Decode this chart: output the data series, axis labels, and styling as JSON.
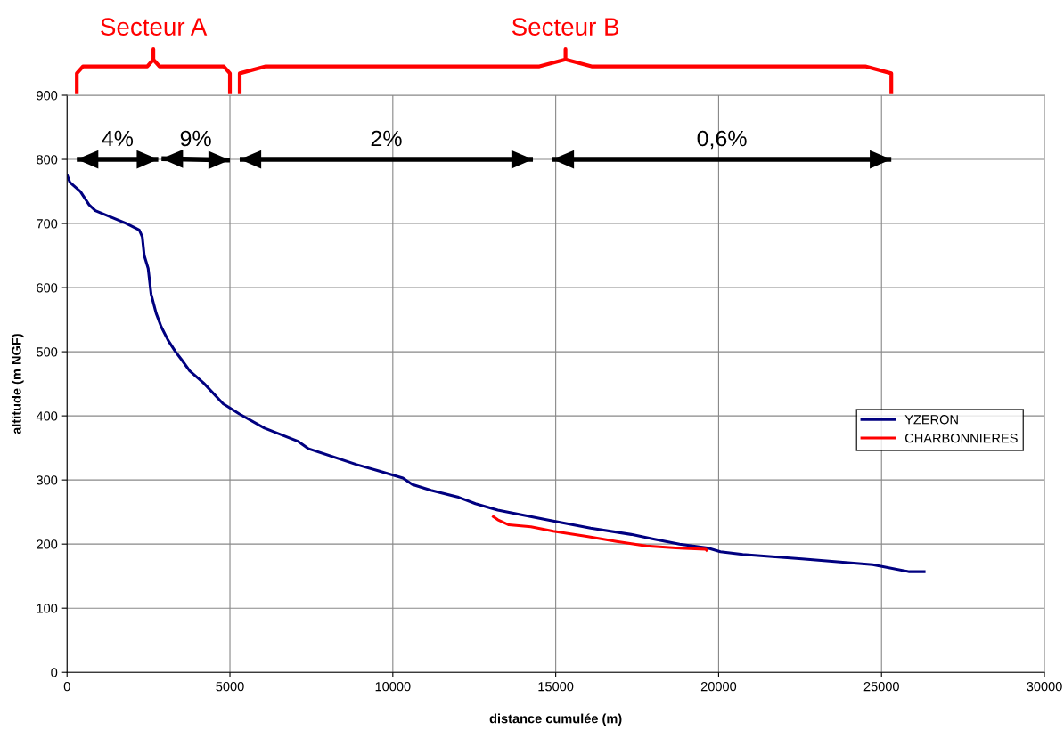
{
  "chart_data": {
    "type": "line",
    "xlabel": "distance cumulée (m)",
    "ylabel": "altitude (m NGF)",
    "xlim": [
      0,
      30000
    ],
    "ylim": [
      0,
      900
    ],
    "xticks": [
      0,
      5000,
      10000,
      15000,
      20000,
      25000,
      30000
    ],
    "yticks": [
      0,
      100,
      200,
      300,
      400,
      500,
      600,
      700,
      800,
      900
    ],
    "grid": true,
    "legend": "right",
    "line_style": "solid",
    "marker": "none",
    "series": [
      {
        "name": "YZERON",
        "color": "#000080",
        "x": [
          0,
          90,
          410,
          680,
          870,
          1780,
          2215,
          2310,
          2370,
          2490,
          2580,
          2735,
          2890,
          3100,
          3330,
          3510,
          3765,
          4195,
          4790,
          5290,
          6060,
          7100,
          7400,
          8890,
          9570,
          10310,
          10600,
          11170,
          12020,
          12535,
          13220,
          14815,
          16070,
          17320,
          18000,
          18800,
          19660,
          20055,
          20740,
          22560,
          24730,
          25850,
          26350
        ],
        "values": [
          776,
          764,
          750,
          729,
          720,
          701,
          690,
          679,
          650,
          630,
          590,
          560,
          539,
          518,
          500,
          488,
          470,
          451,
          419,
          403,
          381,
          360,
          349,
          324,
          314,
          303,
          293,
          284,
          273,
          263,
          253,
          237,
          225,
          215,
          208,
          200,
          194,
          188,
          184,
          177,
          168,
          157,
          157
        ]
      },
      {
        "name": "CHARBONNIERES",
        "color": "#ff0000",
        "x": [
          13050,
          13220,
          13560,
          14240,
          14930,
          15950,
          16870,
          17780,
          18690,
          19600,
          19660
        ],
        "values": [
          244,
          238,
          230,
          227,
          220,
          212,
          204,
          197,
          194,
          192,
          189
        ]
      },
      {
        "color": "#000000",
        "x": [
          300,
          2800
        ],
        "values": [
          800,
          800
        ]
      },
      {
        "color": "#000000",
        "x": [
          2900,
          5000
        ],
        "values": [
          801,
          799
        ]
      },
      {
        "color": "#000000",
        "x": [
          5300,
          14300
        ],
        "values": [
          800,
          800
        ]
      },
      {
        "color": "#000000",
        "x": [
          14900,
          25300
        ],
        "values": [
          800,
          800
        ]
      }
    ],
    "annotations": [
      {
        "text": "4%",
        "x": 1550,
        "y": 800
      },
      {
        "text": "9%",
        "x": 3950,
        "y": 800
      },
      {
        "text": "2%",
        "x": 9800,
        "y": 800
      },
      {
        "text": "0,6%",
        "x": 20100,
        "y": 800
      },
      "Secteur A",
      "Secteur B"
    ]
  }
}
